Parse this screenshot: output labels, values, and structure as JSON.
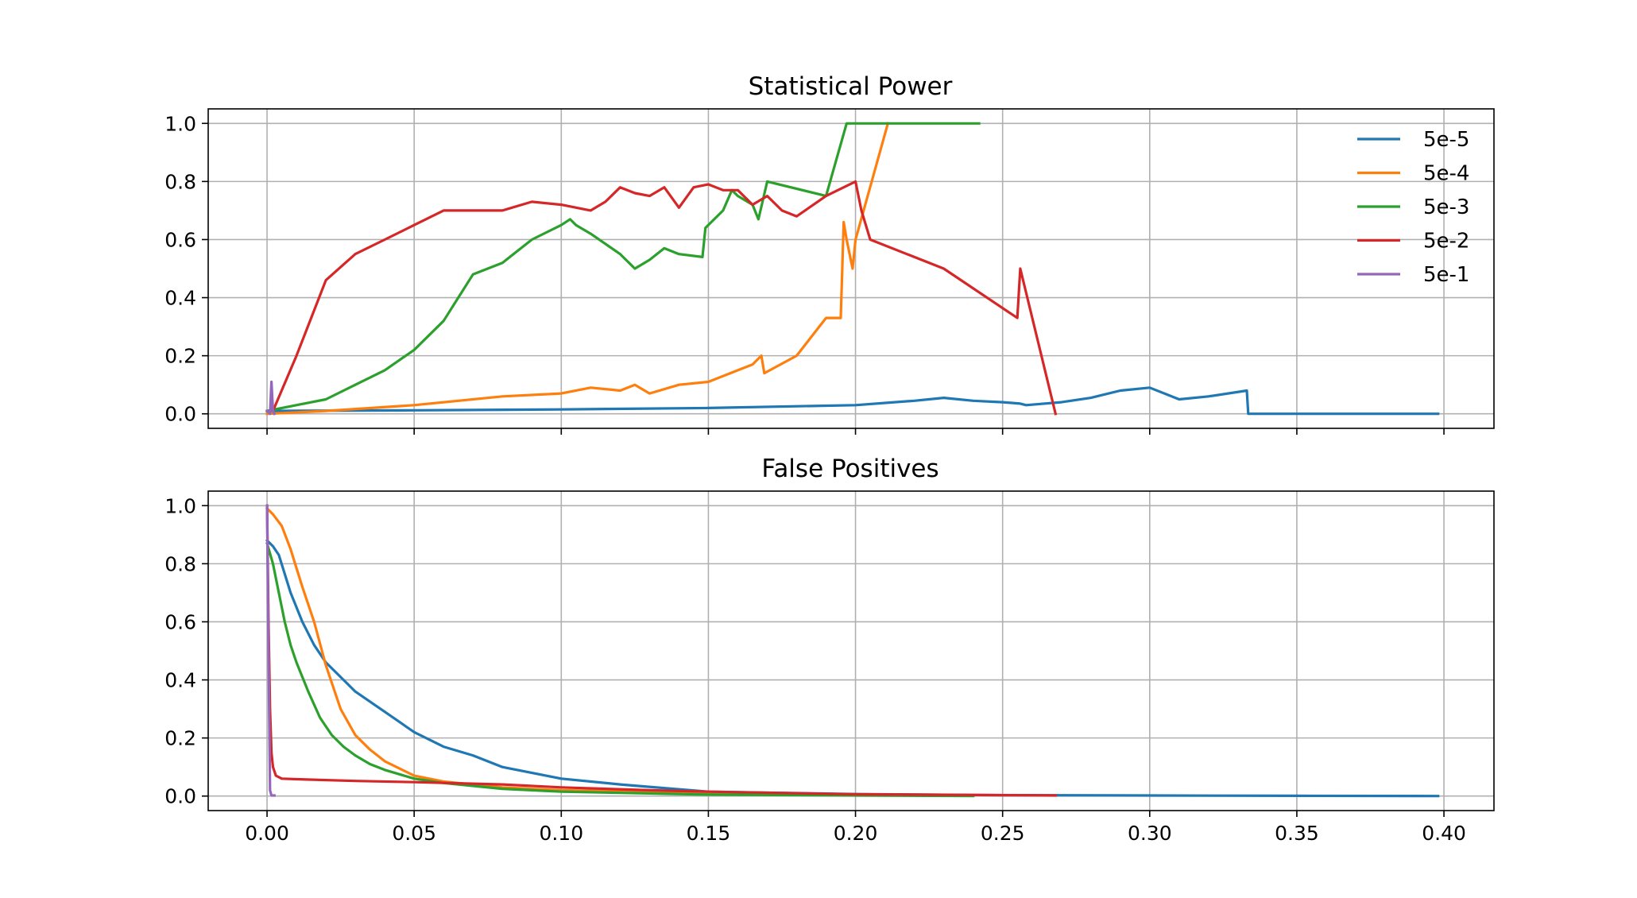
{
  "chart_data": [
    {
      "type": "line",
      "title": "Statistical Power",
      "xlabel": "",
      "ylabel": "",
      "xlim": [
        -0.02,
        0.417
      ],
      "ylim": [
        -0.05,
        1.05
      ],
      "xticks": [
        0.0,
        0.05,
        0.1,
        0.15,
        0.2,
        0.25,
        0.3,
        0.35,
        0.4
      ],
      "xticklabels": [],
      "yticks": [
        0.0,
        0.2,
        0.4,
        0.6,
        0.8,
        1.0
      ],
      "yticklabels": [
        "0.0",
        "0.2",
        "0.4",
        "0.6",
        "0.8",
        "1.0"
      ],
      "grid": true,
      "legend": {
        "position": "upper right",
        "entries": [
          "5e-5",
          "5e-4",
          "5e-3",
          "5e-2",
          "5e-1"
        ]
      },
      "series": [
        {
          "name": "5e-5",
          "color": "#1f77b4",
          "x": [
            0.0,
            0.05,
            0.1,
            0.15,
            0.2,
            0.22,
            0.23,
            0.24,
            0.25,
            0.256,
            0.258,
            0.27,
            0.28,
            0.29,
            0.3,
            0.31,
            0.32,
            0.333,
            0.3335,
            0.36,
            0.398
          ],
          "y": [
            0.01,
            0.012,
            0.015,
            0.02,
            0.03,
            0.045,
            0.055,
            0.045,
            0.04,
            0.035,
            0.03,
            0.04,
            0.055,
            0.08,
            0.09,
            0.05,
            0.06,
            0.08,
            0.0,
            0.0,
            0.0
          ]
        },
        {
          "name": "5e-4",
          "color": "#ff7f0e",
          "x": [
            0.0,
            0.02,
            0.05,
            0.08,
            0.1,
            0.11,
            0.12,
            0.125,
            0.13,
            0.14,
            0.15,
            0.16,
            0.165,
            0.168,
            0.169,
            0.18,
            0.19,
            0.195,
            0.196,
            0.197,
            0.199,
            0.2,
            0.211
          ],
          "y": [
            0.0,
            0.01,
            0.03,
            0.06,
            0.07,
            0.09,
            0.08,
            0.1,
            0.07,
            0.1,
            0.11,
            0.15,
            0.17,
            0.2,
            0.14,
            0.2,
            0.33,
            0.33,
            0.66,
            0.6,
            0.5,
            0.6,
            1.0
          ]
        },
        {
          "name": "5e-3",
          "color": "#2ca02c",
          "x": [
            0.0,
            0.02,
            0.03,
            0.04,
            0.05,
            0.06,
            0.07,
            0.08,
            0.09,
            0.1,
            0.103,
            0.105,
            0.11,
            0.12,
            0.125,
            0.13,
            0.135,
            0.14,
            0.148,
            0.149,
            0.155,
            0.158,
            0.16,
            0.165,
            0.167,
            0.17,
            0.19,
            0.197,
            0.242
          ],
          "y": [
            0.01,
            0.05,
            0.1,
            0.15,
            0.22,
            0.32,
            0.48,
            0.52,
            0.6,
            0.65,
            0.67,
            0.65,
            0.62,
            0.55,
            0.5,
            0.53,
            0.57,
            0.55,
            0.54,
            0.64,
            0.7,
            0.77,
            0.75,
            0.72,
            0.67,
            0.8,
            0.75,
            1.0,
            1.0
          ]
        },
        {
          "name": "5e-2",
          "color": "#d62728",
          "x": [
            0.002,
            0.01,
            0.02,
            0.03,
            0.04,
            0.05,
            0.06,
            0.07,
            0.08,
            0.09,
            0.1,
            0.11,
            0.115,
            0.12,
            0.125,
            0.13,
            0.135,
            0.14,
            0.145,
            0.15,
            0.155,
            0.16,
            0.165,
            0.17,
            0.175,
            0.18,
            0.19,
            0.2,
            0.202,
            0.205,
            0.23,
            0.255,
            0.256,
            0.268
          ],
          "y": [
            0.01,
            0.2,
            0.46,
            0.55,
            0.6,
            0.65,
            0.7,
            0.7,
            0.7,
            0.73,
            0.72,
            0.7,
            0.73,
            0.78,
            0.76,
            0.75,
            0.78,
            0.71,
            0.78,
            0.79,
            0.77,
            0.77,
            0.72,
            0.75,
            0.7,
            0.68,
            0.75,
            0.8,
            0.7,
            0.6,
            0.5,
            0.33,
            0.5,
            0.0
          ]
        },
        {
          "name": "5e-1",
          "color": "#9467bd",
          "x": [
            0.0,
            0.001,
            0.0015,
            0.002,
            0.0025
          ],
          "y": [
            0.01,
            0.0,
            0.11,
            0.01,
            0.0
          ]
        }
      ]
    },
    {
      "type": "line",
      "title": "False Positives",
      "xlabel": "",
      "ylabel": "",
      "xlim": [
        -0.02,
        0.417
      ],
      "ylim": [
        -0.05,
        1.05
      ],
      "xticks": [
        0.0,
        0.05,
        0.1,
        0.15,
        0.2,
        0.25,
        0.3,
        0.35,
        0.4
      ],
      "xticklabels": [
        "0.00",
        "0.05",
        "0.10",
        "0.15",
        "0.20",
        "0.25",
        "0.30",
        "0.35",
        "0.40"
      ],
      "yticks": [
        0.0,
        0.2,
        0.4,
        0.6,
        0.8,
        1.0
      ],
      "yticklabels": [
        "0.0",
        "0.2",
        "0.4",
        "0.6",
        "0.8",
        "1.0"
      ],
      "grid": true,
      "series": [
        {
          "name": "5e-5",
          "color": "#1f77b4",
          "x": [
            0.0,
            0.002,
            0.004,
            0.008,
            0.012,
            0.016,
            0.02,
            0.025,
            0.03,
            0.04,
            0.05,
            0.06,
            0.07,
            0.08,
            0.1,
            0.12,
            0.15,
            0.2,
            0.25,
            0.3,
            0.35,
            0.398
          ],
          "y": [
            0.88,
            0.86,
            0.83,
            0.7,
            0.6,
            0.52,
            0.46,
            0.41,
            0.36,
            0.29,
            0.22,
            0.17,
            0.14,
            0.1,
            0.06,
            0.04,
            0.015,
            0.007,
            0.003,
            0.002,
            0.001,
            0.0
          ]
        },
        {
          "name": "5e-4",
          "color": "#ff7f0e",
          "x": [
            0.0,
            0.002,
            0.005,
            0.008,
            0.012,
            0.016,
            0.02,
            0.025,
            0.03,
            0.035,
            0.04,
            0.05,
            0.06,
            0.08,
            0.1,
            0.15,
            0.2
          ],
          "y": [
            0.99,
            0.97,
            0.93,
            0.85,
            0.72,
            0.6,
            0.45,
            0.3,
            0.21,
            0.16,
            0.12,
            0.07,
            0.05,
            0.03,
            0.02,
            0.01,
            0.005
          ]
        },
        {
          "name": "5e-3",
          "color": "#2ca02c",
          "x": [
            0.0,
            0.002,
            0.004,
            0.006,
            0.008,
            0.01,
            0.014,
            0.018,
            0.022,
            0.026,
            0.03,
            0.035,
            0.04,
            0.05,
            0.06,
            0.08,
            0.1,
            0.15,
            0.2,
            0.24
          ],
          "y": [
            0.87,
            0.8,
            0.7,
            0.6,
            0.52,
            0.46,
            0.36,
            0.27,
            0.21,
            0.17,
            0.14,
            0.11,
            0.09,
            0.06,
            0.045,
            0.025,
            0.015,
            0.005,
            0.002,
            0.0
          ]
        },
        {
          "name": "5e-2",
          "color": "#d62728",
          "x": [
            0.0,
            0.0005,
            0.001,
            0.0015,
            0.002,
            0.003,
            0.005,
            0.01,
            0.03,
            0.05,
            0.08,
            0.1,
            0.13,
            0.15,
            0.2,
            0.268
          ],
          "y": [
            1.0,
            0.6,
            0.3,
            0.15,
            0.1,
            0.07,
            0.06,
            0.058,
            0.052,
            0.048,
            0.04,
            0.03,
            0.02,
            0.015,
            0.006,
            0.002
          ]
        },
        {
          "name": "5e-1",
          "color": "#9467bd",
          "x": [
            0.0,
            0.0005,
            0.001,
            0.0015,
            0.002,
            0.0025
          ],
          "y": [
            1.0,
            0.5,
            0.02,
            0.002,
            0.002,
            0.002
          ]
        }
      ]
    }
  ]
}
